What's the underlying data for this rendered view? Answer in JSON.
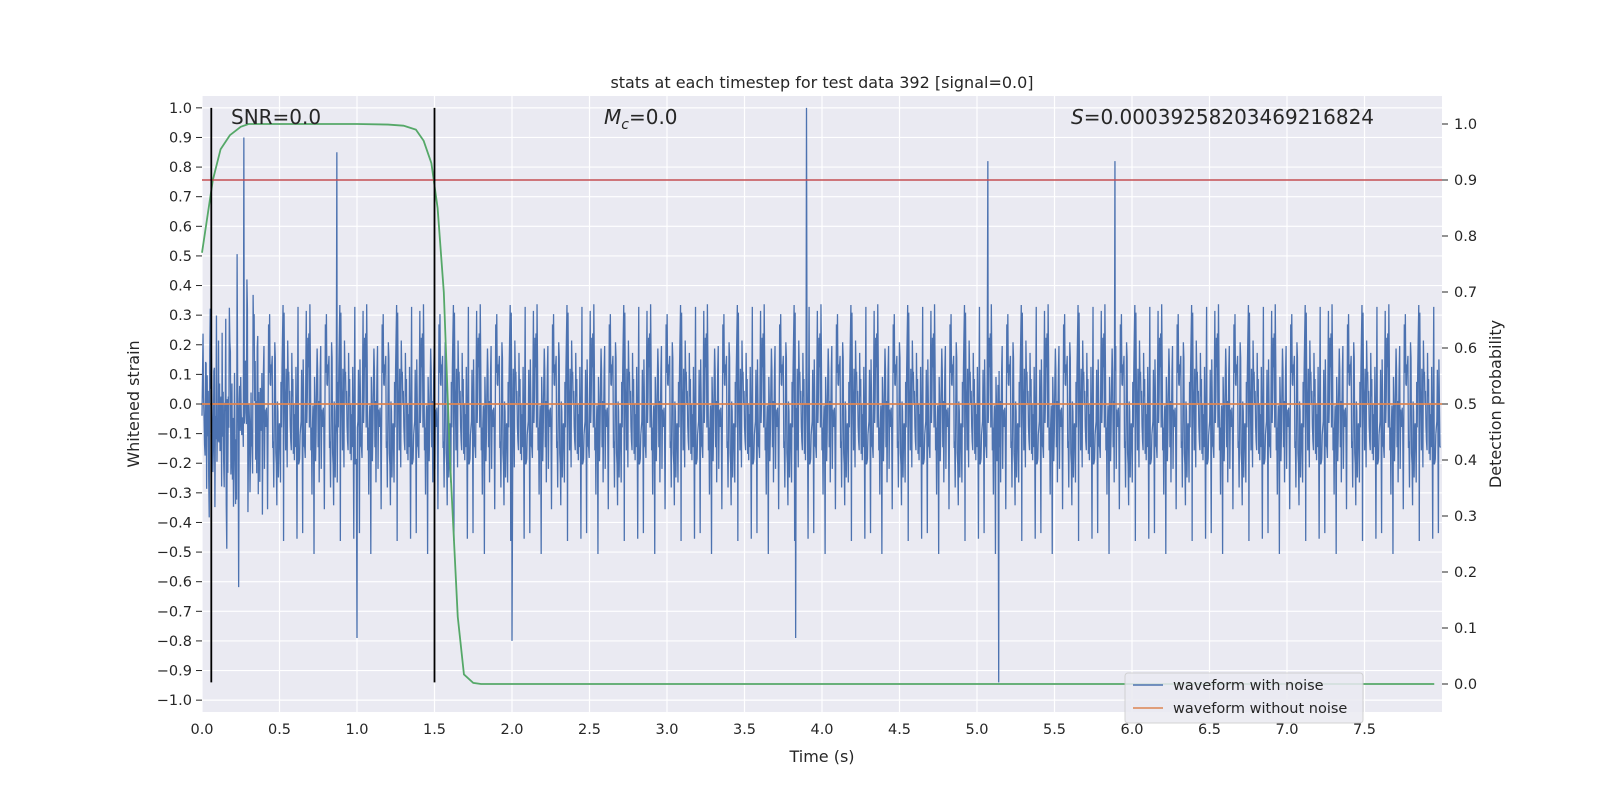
{
  "chart_data": {
    "type": "line",
    "title": "stats at each timestep for test data 392 [signal=0.0]",
    "xlabel": "Time (s)",
    "ylabel": "Whitened strain",
    "y2label": "Detection probability",
    "xlim": [
      0.0,
      8.0
    ],
    "ylim": [
      -1.04,
      1.04
    ],
    "y2lim": [
      -0.05,
      1.05
    ],
    "grid": true,
    "background_color": "#eaeaf2",
    "x_ticks": [
      "0.0",
      "0.5",
      "1.0",
      "1.5",
      "2.0",
      "2.5",
      "3.0",
      "3.5",
      "4.0",
      "4.5",
      "5.0",
      "5.5",
      "6.0",
      "6.5",
      "7.0",
      "7.5"
    ],
    "y_ticks": [
      "1.0",
      "0.9",
      "0.8",
      "0.7",
      "0.6",
      "0.5",
      "0.4",
      "0.3",
      "0.2",
      "0.1",
      "0.0",
      "−0.1",
      "−0.2",
      "−0.3",
      "−0.4",
      "−0.5",
      "−0.6",
      "−0.7",
      "−0.8",
      "−0.9",
      "−1.0"
    ],
    "y2_ticks": [
      "1.0",
      "0.9",
      "0.8",
      "0.7",
      "0.6",
      "0.5",
      "0.4",
      "0.3",
      "0.2",
      "0.1",
      "0.0"
    ],
    "annotations": {
      "snr": "SNR=0.0",
      "mc_symbol": "M",
      "mc_subscript": "c",
      "mc_value": "=0.0",
      "s_symbol": "S",
      "s_value": "=0.00039258203469216824"
    },
    "legend": {
      "placement": "lower-right",
      "entries": [
        "waveform with noise",
        "waveform without noise"
      ]
    },
    "series": [
      {
        "name": "waveform with noise",
        "color": "#4c72b0",
        "axis": "left",
        "style": "noise",
        "noise_max_amplitude": 1.0,
        "notable_peaks": [
          {
            "x": 0.27,
            "y": 0.9
          },
          {
            "x": 0.87,
            "y": 0.85
          },
          {
            "x": 3.9,
            "y": 1.0
          },
          {
            "x": 5.07,
            "y": 0.82
          },
          {
            "x": 5.89,
            "y": 0.82
          },
          {
            "x": 5.14,
            "y": -0.94
          },
          {
            "x": 2.0,
            "y": -0.8
          },
          {
            "x": 1.0,
            "y": -0.79
          },
          {
            "x": 3.83,
            "y": -0.79
          }
        ]
      },
      {
        "name": "waveform without noise",
        "color": "#dd8452",
        "axis": "left",
        "x": [
          0.0,
          8.0
        ],
        "y": [
          0.0,
          0.0
        ]
      },
      {
        "name": "detection probability",
        "color": "#55a868",
        "axis": "right",
        "x": [
          0.0,
          0.07,
          0.12,
          0.18,
          0.25,
          0.3,
          0.4,
          0.6,
          0.8,
          1.0,
          1.2,
          1.3,
          1.38,
          1.43,
          1.48,
          1.52,
          1.56,
          1.6,
          1.65,
          1.69,
          1.75,
          1.8,
          2.0,
          3.0,
          5.0,
          7.0,
          7.95
        ],
        "y": [
          0.77,
          0.9,
          0.955,
          0.98,
          0.995,
          1.0,
          1.0,
          1.0,
          1.0,
          1.0,
          0.999,
          0.997,
          0.99,
          0.97,
          0.93,
          0.85,
          0.7,
          0.4,
          0.12,
          0.017,
          0.002,
          0.0,
          0.0,
          0.0,
          0.0,
          0.0,
          0.0
        ]
      }
    ],
    "hlines": [
      {
        "axis": "right",
        "y": 0.9,
        "color": "#c44e52"
      }
    ],
    "vlines": [
      {
        "x": 0.06,
        "y_range": [
          -0.94,
          1.0
        ],
        "color": "#000000"
      },
      {
        "x": 1.5,
        "y_range": [
          -0.94,
          1.0
        ],
        "color": "#000000"
      }
    ]
  }
}
